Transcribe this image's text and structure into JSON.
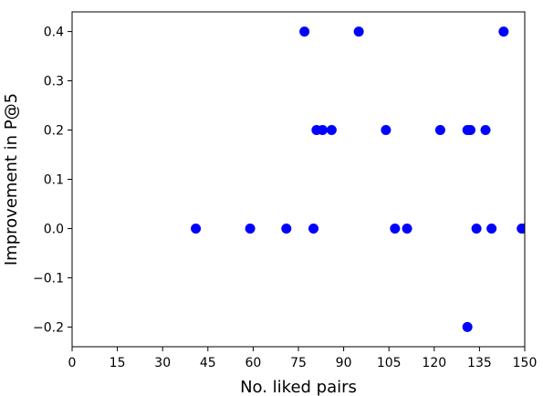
{
  "chart_data": {
    "type": "scatter",
    "title": "",
    "xlabel": "No. liked pairs",
    "ylabel": "Improvement in P@5",
    "xlim": [
      0,
      150
    ],
    "ylim": [
      -0.24,
      0.44
    ],
    "xticks": [
      0,
      15,
      30,
      45,
      60,
      75,
      90,
      105,
      120,
      135,
      150
    ],
    "yticks": [
      -0.2,
      -0.1,
      0.0,
      0.1,
      0.2,
      0.3,
      0.4
    ],
    "xtick_labels": [
      "0",
      "15",
      "30",
      "45",
      "60",
      "75",
      "90",
      "105",
      "120",
      "135",
      "150"
    ],
    "ytick_labels": [
      "−0.2",
      "−0.1",
      "0.0",
      "0.1",
      "0.2",
      "0.3",
      "0.4"
    ],
    "grid": false,
    "marker_color": "#0000ff",
    "points": [
      {
        "x": 41,
        "y": 0.0
      },
      {
        "x": 59,
        "y": 0.0
      },
      {
        "x": 71,
        "y": 0.0
      },
      {
        "x": 77,
        "y": 0.4
      },
      {
        "x": 80,
        "y": 0.0
      },
      {
        "x": 81,
        "y": 0.2
      },
      {
        "x": 83,
        "y": 0.2
      },
      {
        "x": 86,
        "y": 0.2
      },
      {
        "x": 95,
        "y": 0.4
      },
      {
        "x": 104,
        "y": 0.2
      },
      {
        "x": 107,
        "y": 0.0
      },
      {
        "x": 111,
        "y": 0.0
      },
      {
        "x": 122,
        "y": 0.2
      },
      {
        "x": 131,
        "y": 0.2
      },
      {
        "x": 131,
        "y": -0.2
      },
      {
        "x": 132,
        "y": 0.2
      },
      {
        "x": 134,
        "y": 0.0
      },
      {
        "x": 137,
        "y": 0.2
      },
      {
        "x": 139,
        "y": 0.0
      },
      {
        "x": 143,
        "y": 0.4
      },
      {
        "x": 149,
        "y": 0.0
      },
      {
        "x": 150,
        "y": 0.0
      }
    ]
  }
}
